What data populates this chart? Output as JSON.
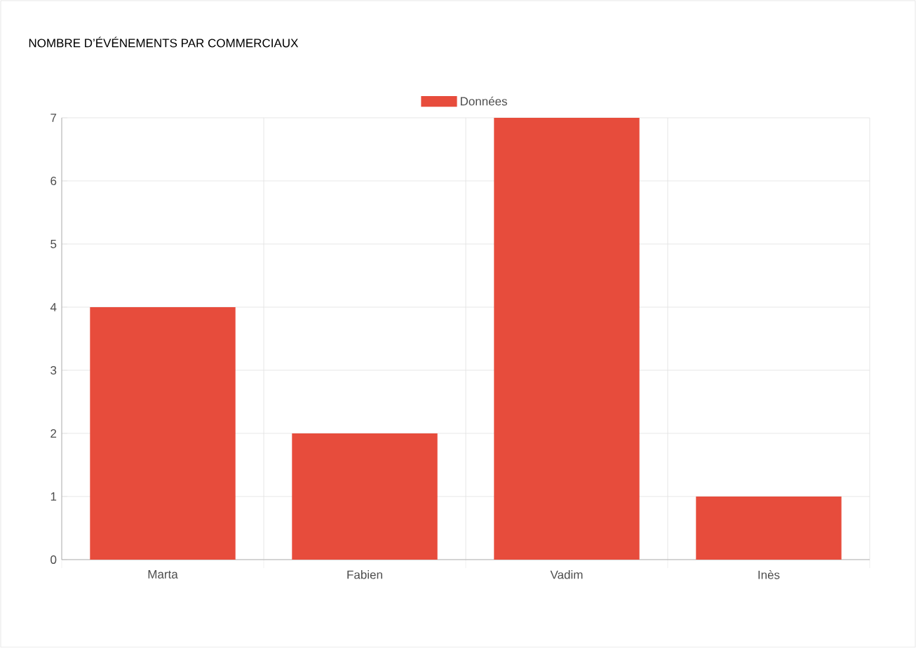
{
  "chart_data": {
    "type": "bar",
    "title": "NOMBRE D’ÉVÉNEMENTS PAR COMMERCIAUX",
    "categories": [
      "Marta",
      "Fabien",
      "Vadim",
      "Inès"
    ],
    "series": [
      {
        "name": "Données",
        "color": "#e74c3c",
        "values": [
          4,
          2,
          7,
          1
        ]
      }
    ],
    "ylim": [
      0,
      7
    ],
    "yticks": [
      0,
      1,
      2,
      3,
      4,
      5,
      6,
      7
    ],
    "grid": true,
    "legend": "top"
  }
}
